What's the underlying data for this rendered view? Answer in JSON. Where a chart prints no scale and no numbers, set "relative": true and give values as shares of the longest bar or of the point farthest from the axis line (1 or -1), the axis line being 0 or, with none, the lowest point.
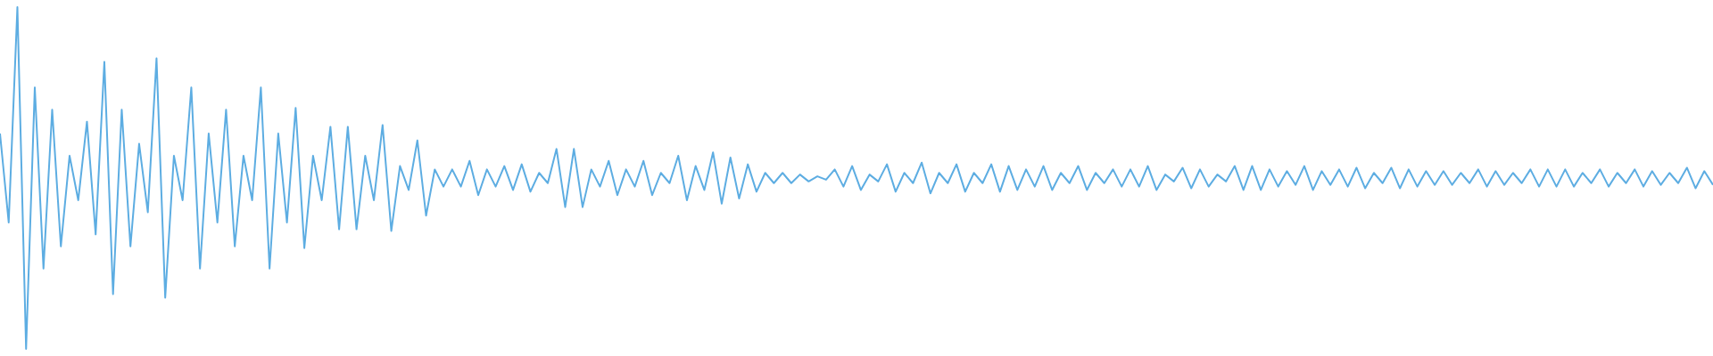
{
  "chart_data": {
    "type": "line",
    "relative": true,
    "legend": false,
    "grid": false,
    "marker": "none",
    "categories": [
      null,
      null,
      null,
      null,
      null,
      null,
      null,
      null,
      null,
      null,
      null,
      null,
      null,
      null,
      null,
      null,
      null,
      null,
      null,
      null,
      null,
      null,
      null,
      null,
      null,
      null,
      null,
      null,
      null,
      null,
      null,
      null,
      null,
      null,
      null,
      null,
      null,
      null,
      null,
      null,
      null,
      null,
      null,
      null,
      null,
      null,
      null,
      null,
      null,
      null,
      null,
      null,
      null,
      null,
      null,
      null,
      null,
      null,
      null,
      null,
      null,
      null,
      null,
      null,
      null,
      null,
      null,
      null,
      null,
      null,
      null,
      null,
      null,
      null,
      null,
      null,
      null,
      null,
      null,
      null,
      null,
      null,
      null,
      null,
      null,
      null,
      null,
      null,
      null,
      null,
      null,
      null,
      null,
      null,
      null,
      null,
      null,
      null,
      null,
      null,
      null,
      null,
      null,
      null,
      null,
      null,
      null,
      null,
      null,
      null,
      null,
      null,
      null,
      null,
      null,
      null,
      null,
      null,
      null,
      null,
      null,
      null,
      null,
      null,
      null,
      null,
      null,
      null,
      null,
      null,
      null,
      null,
      null,
      null,
      null,
      null,
      null,
      null,
      null,
      null,
      null,
      null,
      null,
      null,
      null,
      null,
      null,
      null,
      null,
      null,
      null,
      null,
      null,
      null,
      null,
      null,
      null,
      null,
      null,
      null,
      null,
      null,
      null,
      null,
      null,
      null,
      null,
      null,
      null,
      null,
      null,
      null,
      null,
      null,
      null,
      null,
      null,
      null,
      null,
      null,
      null,
      null,
      null,
      null,
      null,
      null,
      null,
      null,
      null,
      null,
      null,
      null,
      null,
      null,
      null,
      null,
      null,
      null
    ],
    "series": [
      {
        "color": "#5dade2",
        "values": [
          0.63,
          0.37,
          1,
          0,
          0.765,
          0.235,
          0.7,
          0.3,
          0.565,
          0.435,
          0.665,
          0.335,
          0.84,
          0.16,
          0.7,
          0.3,
          0.6,
          0.4,
          0.85,
          0.15,
          0.565,
          0.435,
          0.765,
          0.235,
          0.63,
          0.37,
          0.7,
          0.3,
          0.565,
          0.435,
          0.765,
          0.235,
          0.63,
          0.37,
          0.705,
          0.295,
          0.565,
          0.435,
          0.65,
          0.35,
          0.65,
          0.35,
          0.565,
          0.435,
          0.655,
          0.345,
          0.535,
          0.465,
          0.61,
          0.39,
          0.525,
          0.475,
          0.525,
          0.475,
          0.55,
          0.45,
          0.525,
          0.475,
          0.535,
          0.465,
          0.54,
          0.46,
          0.515,
          0.485,
          0.585,
          0.415,
          0.585,
          0.415,
          0.525,
          0.475,
          0.55,
          0.45,
          0.525,
          0.475,
          0.55,
          0.45,
          0.515,
          0.485,
          0.565,
          0.435,
          0.535,
          0.465,
          0.575,
          0.425,
          0.56,
          0.44,
          0.54,
          0.46,
          0.515,
          0.485,
          0.515,
          0.485,
          0.51,
          0.49,
          0.505,
          0.495,
          0.525,
          0.475,
          0.535,
          0.465,
          0.51,
          0.49,
          0.54,
          0.46,
          0.515,
          0.485,
          0.545,
          0.455,
          0.515,
          0.485,
          0.54,
          0.46,
          0.515,
          0.485,
          0.54,
          0.46,
          0.535,
          0.465,
          0.525,
          0.475,
          0.535,
          0.465,
          0.515,
          0.485,
          0.535,
          0.465,
          0.515,
          0.485,
          0.525,
          0.475,
          0.525,
          0.475,
          0.535,
          0.465,
          0.51,
          0.49,
          0.53,
          0.47,
          0.525,
          0.475,
          0.51,
          0.49,
          0.535,
          0.465,
          0.535,
          0.465,
          0.525,
          0.475,
          0.52,
          0.48,
          0.535,
          0.465,
          0.52,
          0.48,
          0.525,
          0.475,
          0.53,
          0.47,
          0.515,
          0.485,
          0.53,
          0.47,
          0.525,
          0.475,
          0.52,
          0.48,
          0.52,
          0.48,
          0.515,
          0.485,
          0.525,
          0.475,
          0.52,
          0.48,
          0.515,
          0.485,
          0.525,
          0.475,
          0.525,
          0.475,
          0.525,
          0.475,
          0.515,
          0.485,
          0.525,
          0.475,
          0.515,
          0.485,
          0.525,
          0.475,
          0.52,
          0.48,
          0.515,
          0.485,
          0.53,
          0.47,
          0.52,
          0.48
        ]
      }
    ]
  }
}
